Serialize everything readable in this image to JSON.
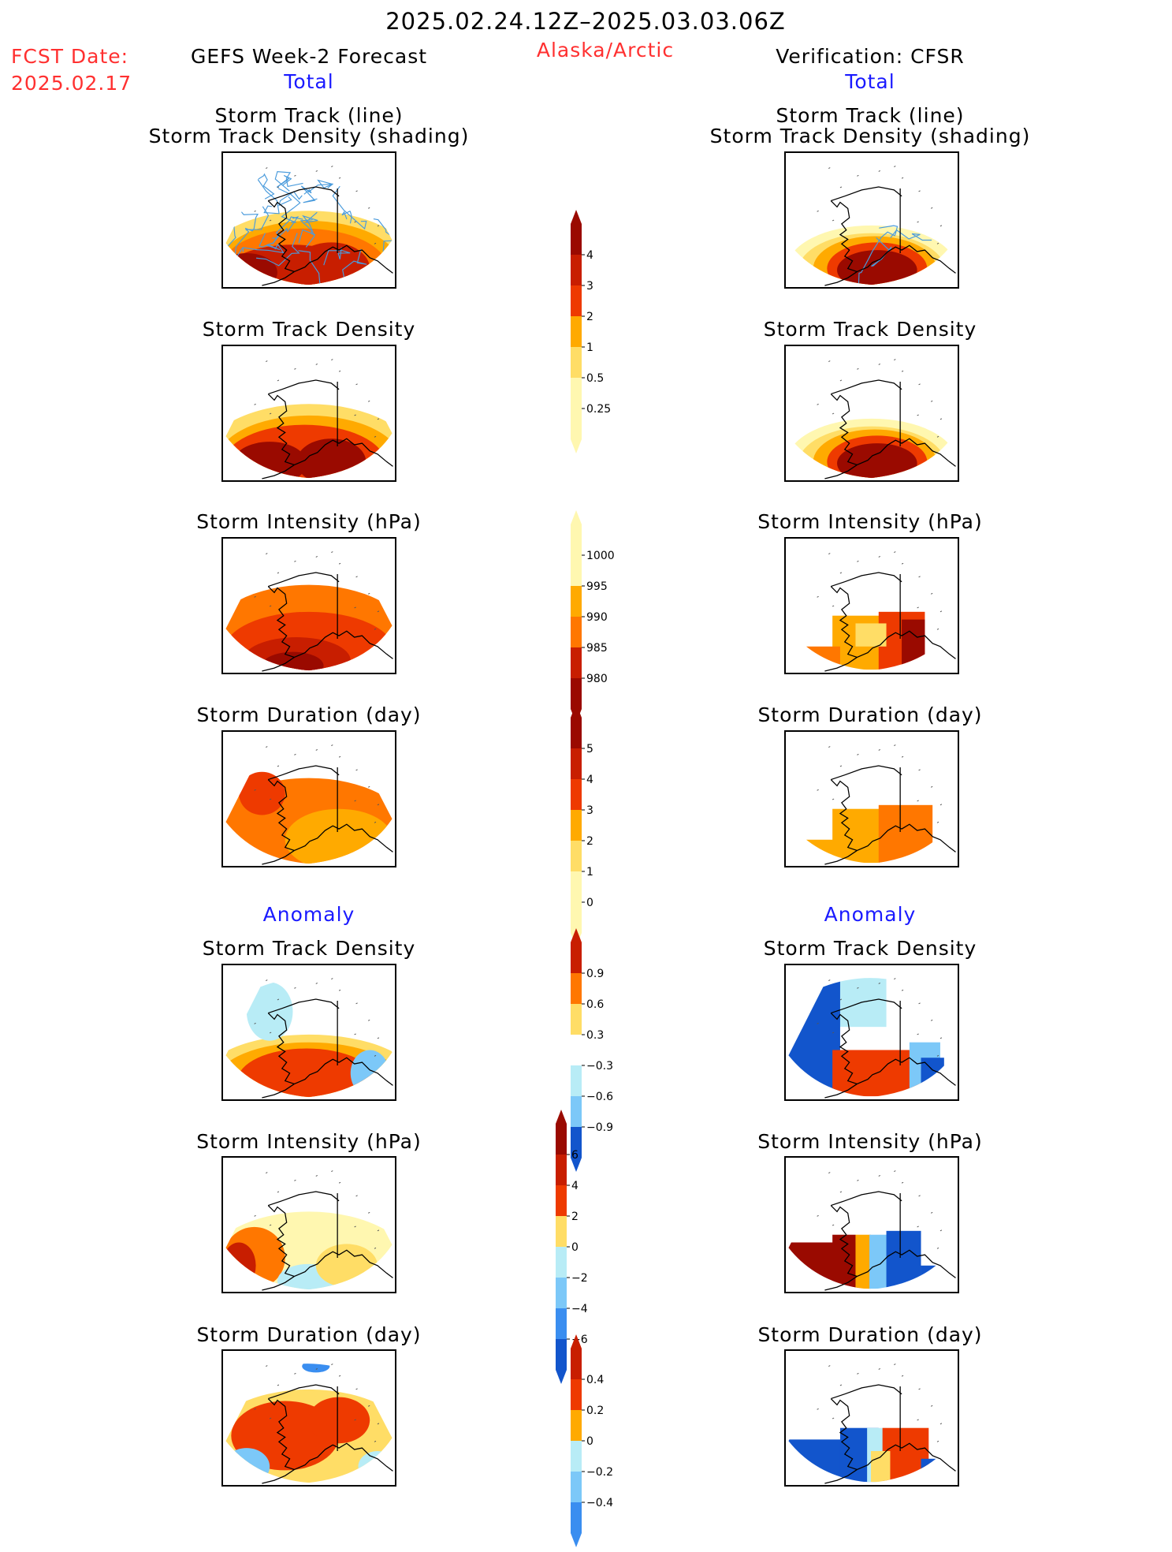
{
  "header": {
    "period": "2025.02.24.12Z–2025.03.03.06Z",
    "region": "Alaska/Arctic",
    "fcst_label": "FCST Date:",
    "fcst_date": "2025.02.17",
    "left_title": "GEFS Week-2 Forecast",
    "right_title": "Verification: CFSR",
    "total_label": "Total",
    "anomaly_label": "Anomaly"
  },
  "panel_titles": {
    "track_line": "Storm Track (line)",
    "track_shading": "Storm Track Density (shading)",
    "density": "Storm Track Density",
    "intensity": "Storm Intensity (hPa)",
    "duration": "Storm Duration (day)"
  },
  "colorbars": {
    "density_total": [
      "4",
      "3",
      "2",
      "1",
      "0.5",
      "0.25"
    ],
    "intensity_total": [
      "1000",
      "995",
      "990",
      "985",
      "980"
    ],
    "duration_total": [
      "5",
      "4",
      "3",
      "2",
      "1",
      "0"
    ],
    "density_anomaly": [
      "0.9",
      "0.6",
      "0.3",
      "−0.3",
      "−0.6",
      "−0.9"
    ],
    "intensity_anomaly": [
      "6",
      "4",
      "2",
      "0",
      "−2",
      "−4",
      "−6"
    ],
    "duration_anomaly": [
      "0.4",
      "0.2",
      "0",
      "−0.2",
      "−0.4"
    ]
  },
  "colors": {
    "warm": [
      "#fff7b0",
      "#ffdd66",
      "#ffaa00",
      "#ff7700",
      "#ee3a00",
      "#c81e00",
      "#9a0a00"
    ],
    "cool": [
      "#b8ecf6",
      "#7cc8f8",
      "#3a8ef0",
      "#1255cc"
    ],
    "track_line": "#4a9bdc"
  }
}
